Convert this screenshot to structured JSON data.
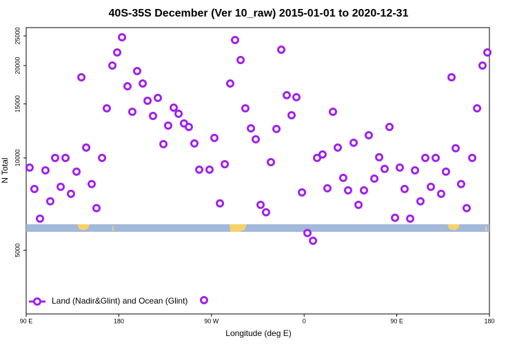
{
  "chart_data": {
    "type": "scatter",
    "title": "40S-35S December (Ver 10_raw)   2015-01-01 to 2020-12-31",
    "x_label": "Longitude (deg E)",
    "y_label": "N Total",
    "xlim": [
      90,
      540
    ],
    "ylim": [
      3100,
      26600
    ],
    "log_y": true,
    "xticks": [
      {
        "value": 90,
        "label": "90 E"
      },
      180,
      {
        "value": 270,
        "label": "90 W"
      },
      {
        "value": 360,
        "label": "0"
      },
      {
        "value": 450,
        "label": "90 E"
      },
      {
        "value": 540,
        "label": "180"
      }
    ],
    "yticks": [
      5000,
      10000,
      15000,
      20000,
      25000
    ],
    "legend": "bottom-left",
    "series": [
      {
        "name": "Land (Nadir&Glint) and Ocean (Glint)",
        "color": "#a020f0",
        "x": [
          93.3,
          98.0,
          103.4,
          108.7,
          113.4,
          118.1,
          123.5,
          128.2,
          133.5,
          138.9,
          143.6,
          148.3,
          153.6,
          158.3,
          163.7,
          168.3,
          173.7,
          178.4,
          183.1,
          188.4,
          193.1,
          197.8,
          203.2,
          207.9,
          213.2,
          217.9,
          223.3,
          227.9,
          233.3,
          238.0,
          243.3,
          248.0,
          253.4,
          258.1,
          268.1,
          272.8,
          278.2,
          282.9,
          288.2,
          292.9,
          298.3,
          302.9,
          308.3,
          313.0,
          317.7,
          323.0,
          327.7,
          333.1,
          337.8,
          343.1,
          347.8,
          352.5,
          357.9,
          363.2,
          368.6,
          372.6,
          377.9,
          382.6,
          388.0,
          392.7,
          398.0,
          402.7,
          408.1,
          412.8,
          418.1,
          422.8,
          428.2,
          432.9,
          438.2,
          442.9,
          448.3,
          452.9,
          457.6,
          463.0,
          467.7,
          473.0,
          477.7,
          483.1,
          487.8,
          493.1,
          497.8,
          503.2,
          507.2,
          512.5,
          517.9,
          523.3,
          528.0,
          533.3,
          538.0
        ],
        "values": [
          9300,
          7920,
          6340,
          9110,
          7220,
          10000,
          8050,
          10000,
          7640,
          9020,
          18320,
          10810,
          8220,
          6860,
          10000,
          14510,
          20010,
          22070,
          24740,
          17130,
          14140,
          19190,
          17480,
          15360,
          13710,
          15690,
          11090,
          12750,
          14590,
          13930,
          12960,
          12620,
          11150,
          9160,
          9160,
          11620,
          7110,
          9540,
          17480,
          24230,
          20850,
          14510,
          12490,
          11500,
          7030,
          6650,
          9690,
          12430,
          22530,
          16010,
          13780,
          15770,
          7720,
          5690,
          5370,
          10000,
          10260,
          7960,
          14140,
          10810,
          8610,
          7840,
          11210,
          7030,
          7840,
          11860,
          8560,
          10050,
          9210,
          12620,
          6380,
          9300,
          7920,
          6340,
          9110,
          7220,
          10000,
          8050,
          10000,
          7640,
          9020,
          18320,
          10750,
          8220,
          6860,
          10000,
          14510,
          20010,
          22070
        ]
      }
    ]
  }
}
